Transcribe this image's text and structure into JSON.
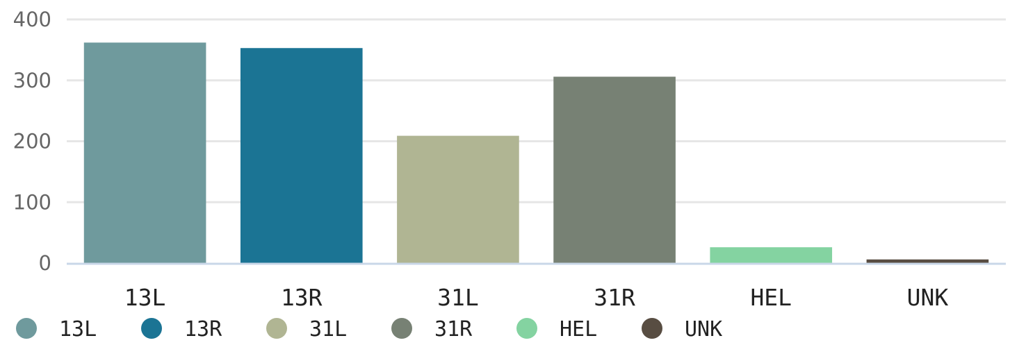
{
  "chart_data": {
    "type": "bar",
    "categories": [
      "13L",
      "13R",
      "31L",
      "31R",
      "HEL",
      "UNK"
    ],
    "values": [
      362,
      353,
      209,
      306,
      26,
      6
    ],
    "colors": [
      "#6f9a9d",
      "#1b7494",
      "#b0b593",
      "#778174",
      "#84d3a1",
      "#584d42"
    ],
    "y_ticks": [
      "0",
      "100",
      "200",
      "300",
      "400"
    ],
    "ylim": [
      0,
      400
    ],
    "grid": true,
    "legend": {
      "position": "bottom-left",
      "entries": [
        "13L",
        "13R",
        "31L",
        "31R",
        "HEL",
        "UNK"
      ]
    }
  }
}
